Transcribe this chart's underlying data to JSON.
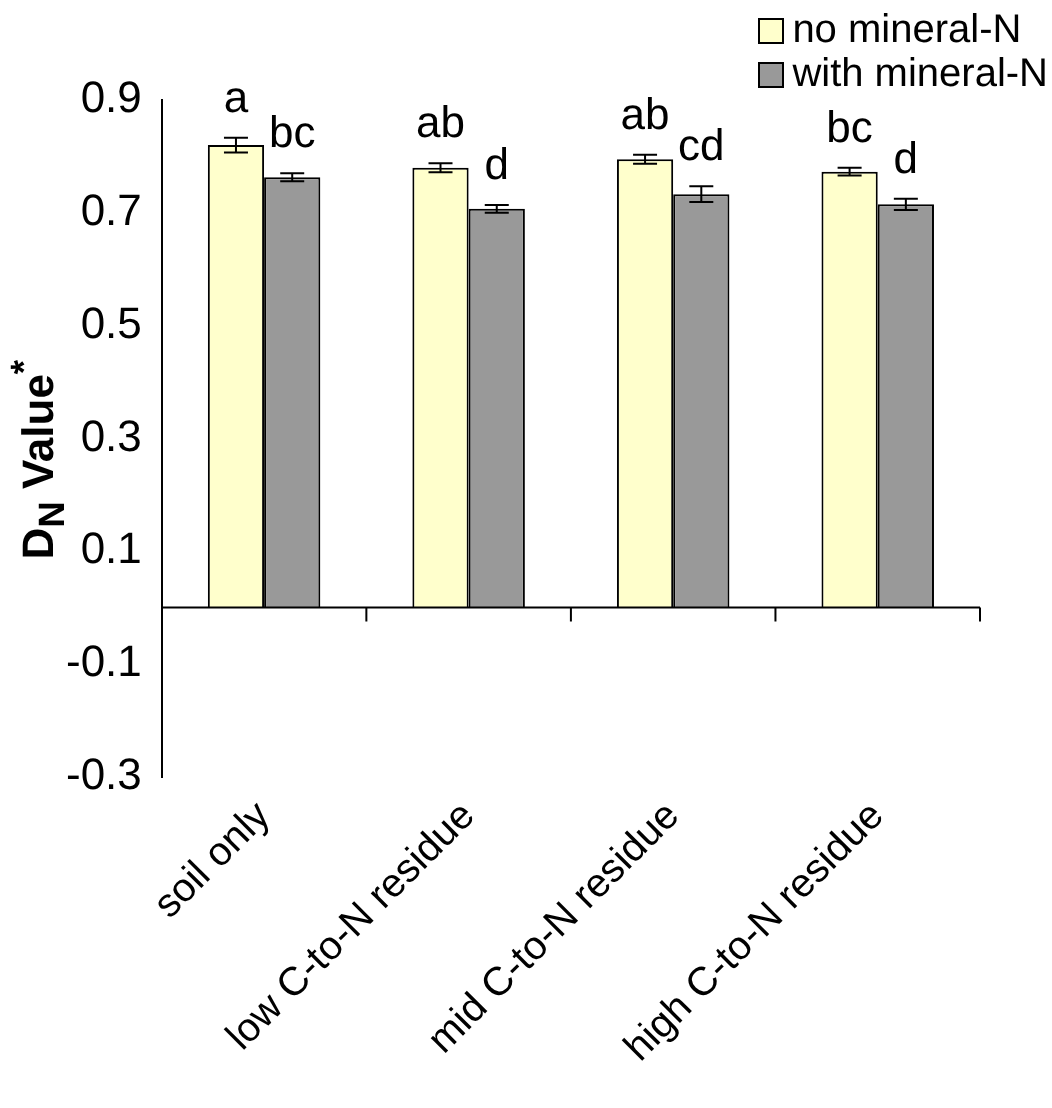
{
  "chart_data": {
    "type": "bar",
    "ylabel": "D$_{N}$ Value$^{*}$",
    "categories": [
      "soil only",
      "low C-to-N residue",
      "mid C-to-N residue",
      "high C-to-N residue"
    ],
    "series": [
      {
        "name": "no mineral-N",
        "color": "#ffffcc",
        "values": [
          0.82,
          0.78,
          0.795,
          0.773
        ],
        "errors": [
          0.013,
          0.008,
          0.008,
          0.007
        ]
      },
      {
        "name": "with mineral-N",
        "color": "#999999",
        "values": [
          0.763,
          0.707,
          0.733,
          0.715
        ],
        "errors": [
          0.007,
          0.007,
          0.014,
          0.01
        ]
      }
    ],
    "ylim": [
      -0.3,
      0.9
    ],
    "yticks": [
      -0.3,
      -0.1,
      0.1,
      0.3,
      0.5,
      0.7,
      0.9
    ],
    "grid": false,
    "legend": "top right",
    "annotations": [
      {
        "text": "a",
        "x": "soil only",
        "y": 0.82
      },
      {
        "text": "bc",
        "x": "soil only",
        "y": 0.763
      },
      {
        "text": "ab",
        "x": "low C-to-N residue",
        "y": 0.78
      },
      {
        "text": "d",
        "x": "low C-to-N residue",
        "y": 0.707
      },
      {
        "text": "ab",
        "x": "mid C-to-N residue",
        "y": 0.795
      },
      {
        "text": "cd",
        "x": "mid C-to-N residue",
        "y": 0.733
      },
      {
        "text": "bc",
        "x": "high C-to-N residue",
        "y": 0.773
      },
      {
        "text": "d",
        "x": "high C-to-N residue",
        "y": 0.715
      }
    ]
  }
}
